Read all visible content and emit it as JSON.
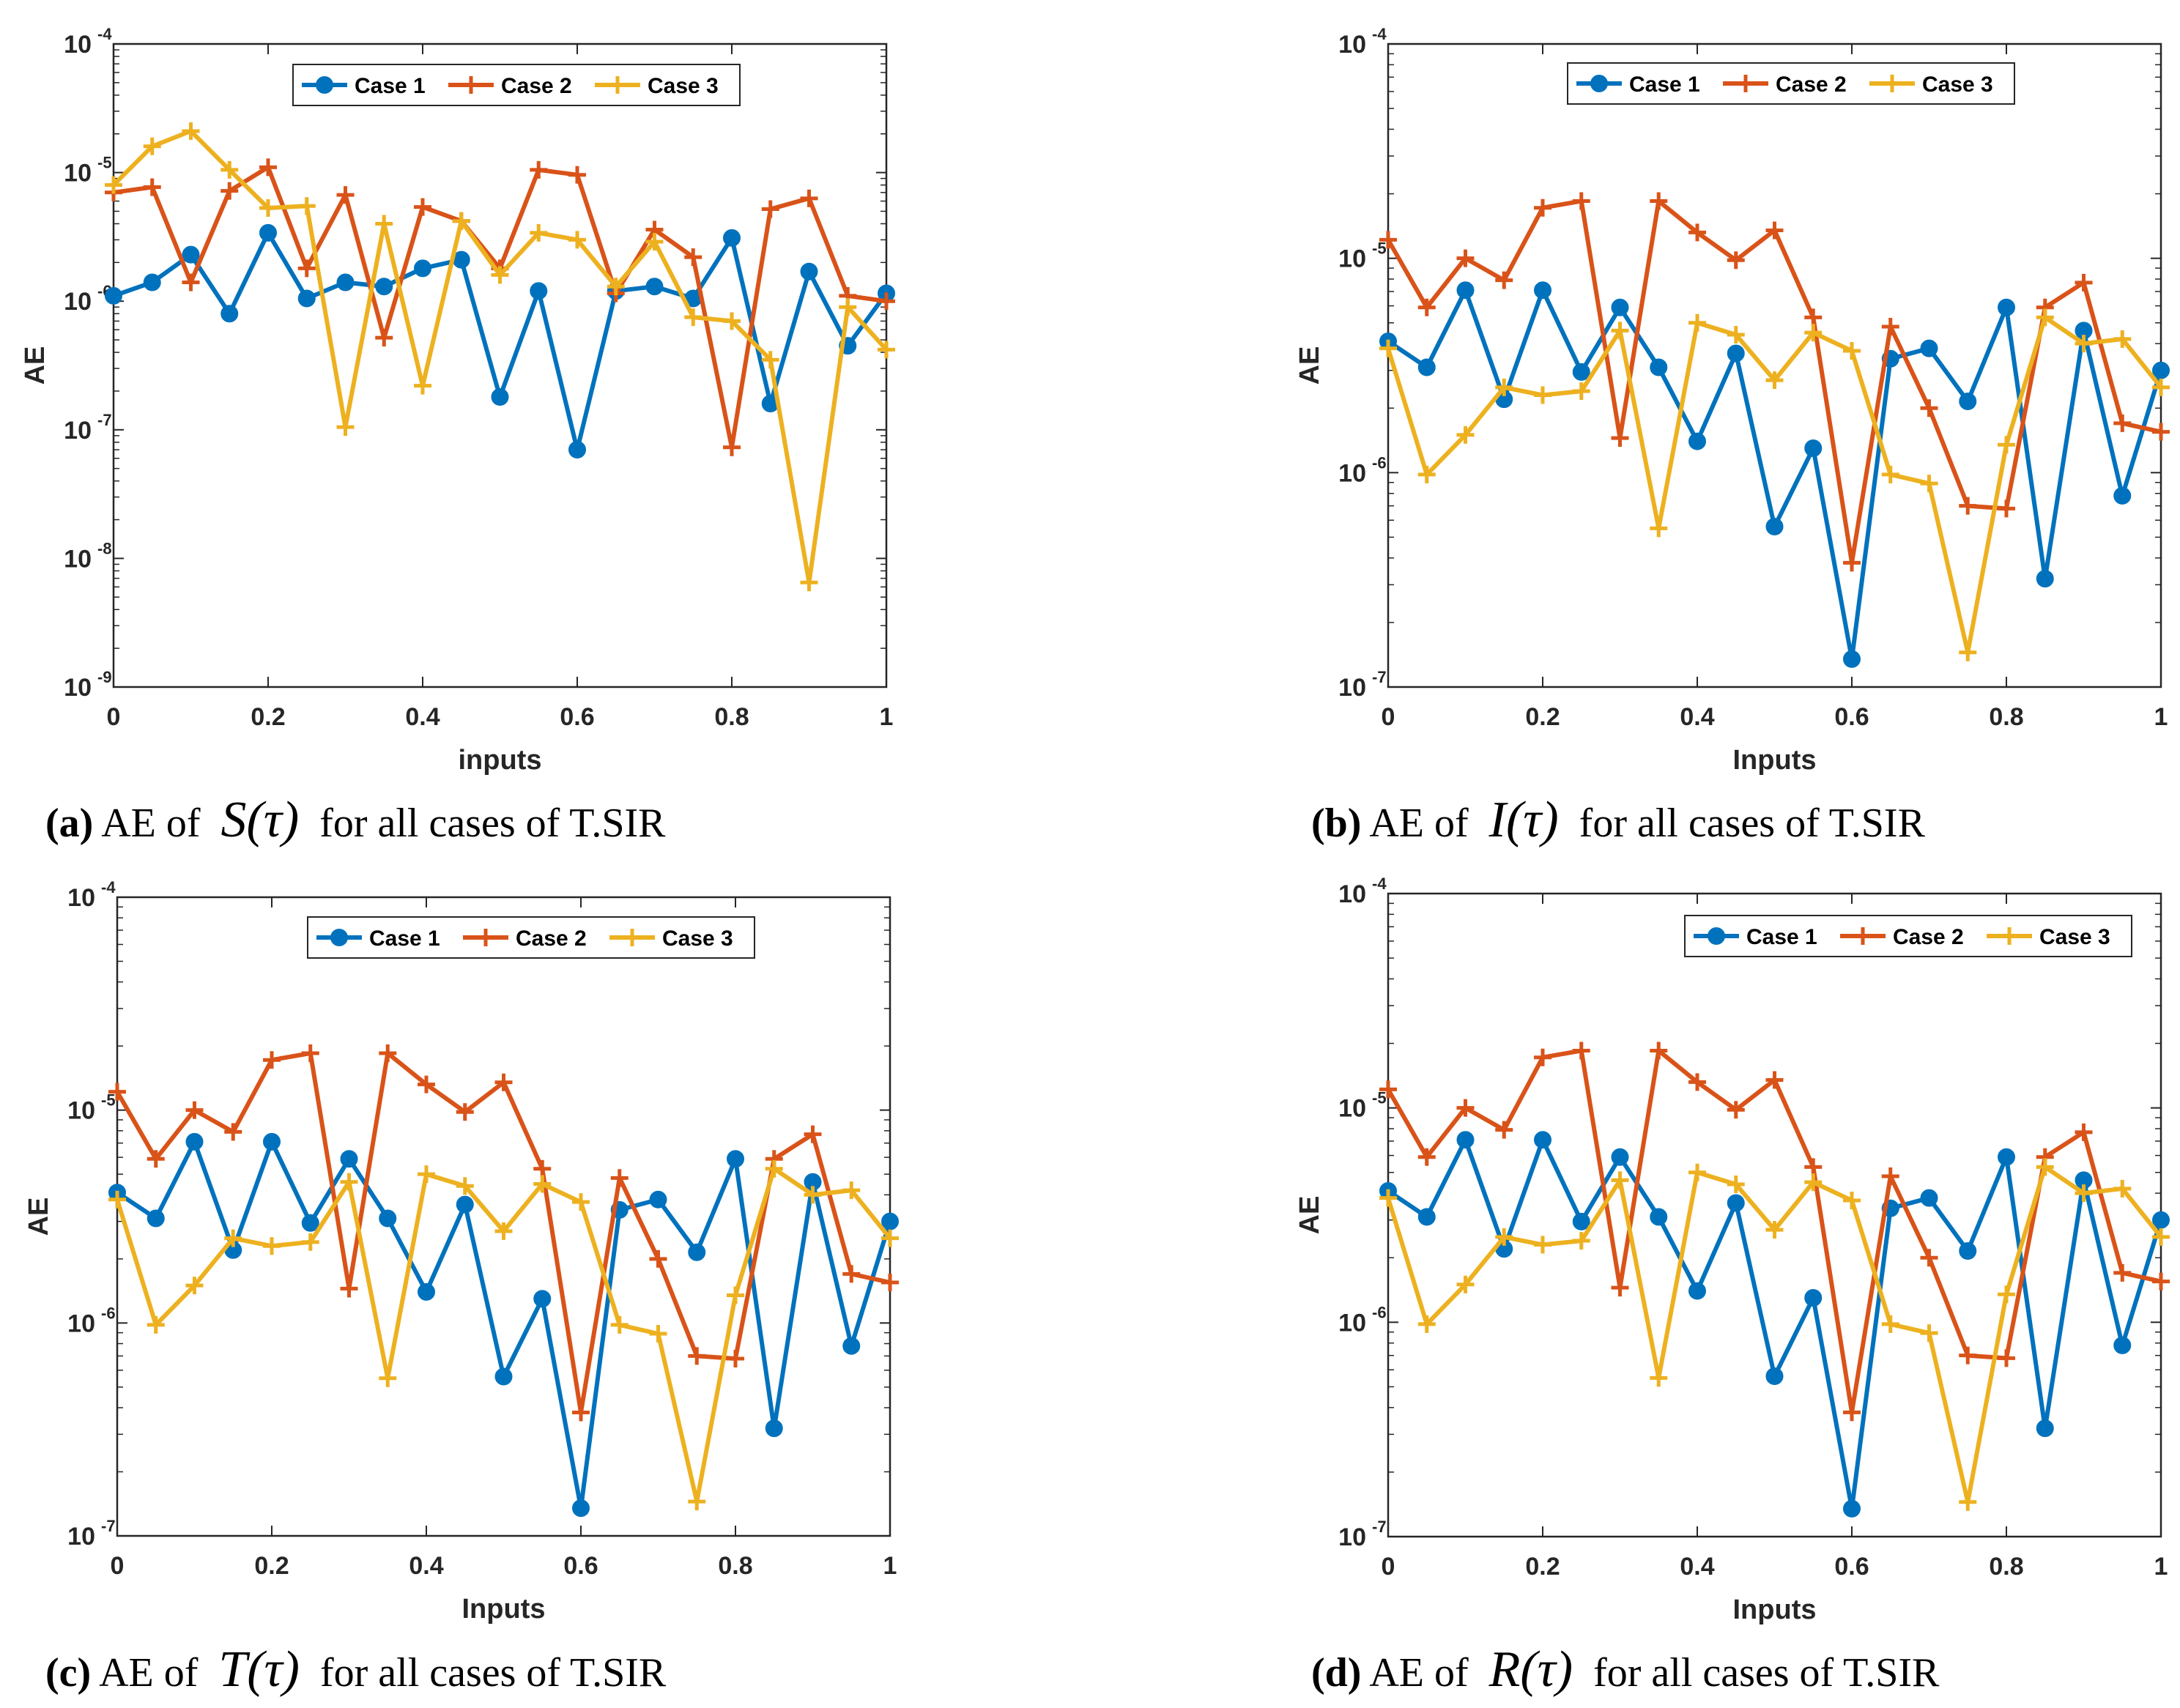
{
  "colors": {
    "case1": "#0072BD",
    "case2": "#D95319",
    "case3": "#EDB120",
    "axis": "#262626"
  },
  "chart_data": [
    {
      "id": "a",
      "type": "line",
      "yscale": "log",
      "title": "",
      "xlabel": "inputs",
      "ylabel": "AE",
      "xlim": [
        0,
        1
      ],
      "ylim_exp": [
        -9,
        -4
      ],
      "x_ticks": [
        "0",
        "0.2",
        "0.4",
        "0.6",
        "0.8",
        "1"
      ],
      "y_tick_base": "10",
      "y_tick_exps": [
        "-9",
        "-8",
        "-7",
        "-6",
        "-5",
        "-4"
      ],
      "legend_position": "top",
      "x": [
        0,
        0.05,
        0.1,
        0.15,
        0.2,
        0.25,
        0.3,
        0.35,
        0.4,
        0.45,
        0.5,
        0.55,
        0.6,
        0.65,
        0.7,
        0.75,
        0.8,
        0.85,
        0.9,
        0.95,
        1
      ],
      "series": [
        {
          "name": "Case 1",
          "values": [
            1.1e-06,
            1.4e-06,
            2.3e-06,
            8e-07,
            3.4e-06,
            1.05e-06,
            1.4e-06,
            1.3e-06,
            1.8e-06,
            2.1e-06,
            1.8e-07,
            1.2e-06,
            7e-08,
            1.2e-06,
            1.3e-06,
            1.05e-06,
            3.1e-06,
            1.6e-07,
            1.7e-06,
            4.5e-07,
            1.15e-06
          ]
        },
        {
          "name": "Case 2",
          "values": [
            7e-06,
            7.7e-06,
            1.4e-06,
            7.2e-06,
            1.1e-05,
            1.8e-06,
            6.7e-06,
            5.2e-07,
            5.4e-06,
            4.2e-06,
            1.8e-06,
            1.05e-05,
            9.6e-06,
            1.15e-06,
            3.6e-06,
            2.2e-06,
            7.3e-08,
            5.2e-06,
            6.3e-06,
            1.1e-06,
            1e-06
          ]
        },
        {
          "name": "Case 3",
          "values": [
            8e-06,
            1.6e-05,
            2.1e-05,
            1.05e-05,
            5.3e-06,
            5.5e-06,
            1.05e-07,
            4e-06,
            2.2e-07,
            4.2e-06,
            1.6e-06,
            3.4e-06,
            3e-06,
            1.3e-06,
            2.9e-06,
            7.5e-07,
            7e-07,
            3.5e-07,
            6.5e-09,
            9e-07,
            4.2e-07
          ]
        }
      ],
      "caption": {
        "label": "(a)",
        "prefix": " AE of",
        "func": "S(τ)",
        "suffix": "for all cases of T.SIR"
      }
    },
    {
      "id": "b",
      "type": "line",
      "yscale": "log",
      "title": "",
      "xlabel": "Inputs",
      "ylabel": "AE",
      "xlim": [
        0,
        1
      ],
      "ylim_exp": [
        -7,
        -4
      ],
      "x_ticks": [
        "0",
        "0.2",
        "0.4",
        "0.6",
        "0.8",
        "1"
      ],
      "y_tick_base": "10",
      "y_tick_exps": [
        "-7",
        "-6",
        "-5",
        "-4"
      ],
      "legend_position": "top",
      "x": [
        0,
        0.05,
        0.1,
        0.15,
        0.2,
        0.25,
        0.3,
        0.35,
        0.4,
        0.45,
        0.5,
        0.55,
        0.6,
        0.65,
        0.7,
        0.75,
        0.8,
        0.85,
        0.9,
        0.95,
        1
      ],
      "series": [
        {
          "name": "Case 1",
          "values": [
            4.1e-06,
            3.1e-06,
            7.1e-06,
            2.2e-06,
            7.1e-06,
            2.95e-06,
            5.9e-06,
            3.1e-06,
            1.4e-06,
            3.6e-06,
            5.6e-07,
            1.3e-06,
            1.35e-07,
            3.4e-06,
            3.8e-06,
            2.15e-06,
            5.9e-06,
            3.2e-07,
            4.6e-06,
            7.8e-07,
            3e-06
          ]
        },
        {
          "name": "Case 2",
          "values": [
            1.22e-05,
            5.9e-06,
            1e-05,
            7.9e-06,
            1.72e-05,
            1.85e-05,
            1.45e-06,
            1.85e-05,
            1.32e-05,
            9.8e-06,
            1.35e-05,
            5.3e-06,
            3.8e-07,
            4.8e-06,
            2e-06,
            7e-07,
            6.8e-07,
            5.9e-06,
            7.7e-06,
            1.7e-06,
            1.55e-06
          ]
        },
        {
          "name": "Case 3",
          "values": [
            3.8e-06,
            9.8e-07,
            1.5e-06,
            2.5e-06,
            2.3e-06,
            2.4e-06,
            4.6e-06,
            5.5e-07,
            5e-06,
            4.4e-06,
            2.7e-06,
            4.5e-06,
            3.7e-06,
            9.8e-07,
            8.9e-07,
            1.45e-07,
            1.35e-06,
            5.3e-06,
            4e-06,
            4.2e-06,
            2.5e-06
          ]
        }
      ],
      "caption": {
        "label": "(b)",
        "prefix": " AE of",
        "func": "I(τ)",
        "suffix": "for all cases of T.SIR"
      }
    },
    {
      "id": "c",
      "type": "line",
      "yscale": "log",
      "title": "",
      "xlabel": "Inputs",
      "ylabel": "AE",
      "xlim": [
        0,
        1
      ],
      "ylim_exp": [
        -7,
        -4
      ],
      "x_ticks": [
        "0",
        "0.2",
        "0.4",
        "0.6",
        "0.8",
        "1"
      ],
      "y_tick_base": "10",
      "y_tick_exps": [
        "-7",
        "-6",
        "-5",
        "-4"
      ],
      "legend_position": "top",
      "x": [
        0,
        0.05,
        0.1,
        0.15,
        0.2,
        0.25,
        0.3,
        0.35,
        0.4,
        0.45,
        0.5,
        0.55,
        0.6,
        0.65,
        0.7,
        0.75,
        0.8,
        0.85,
        0.9,
        0.95,
        1
      ],
      "series": [
        {
          "name": "Case 1",
          "values": [
            4.1e-06,
            3.1e-06,
            7.1e-06,
            2.2e-06,
            7.1e-06,
            2.95e-06,
            5.9e-06,
            3.1e-06,
            1.4e-06,
            3.6e-06,
            5.6e-07,
            1.3e-06,
            1.35e-07,
            3.4e-06,
            3.8e-06,
            2.15e-06,
            5.9e-06,
            3.2e-07,
            4.6e-06,
            7.8e-07,
            3e-06
          ]
        },
        {
          "name": "Case 2",
          "values": [
            1.22e-05,
            5.9e-06,
            1e-05,
            7.9e-06,
            1.72e-05,
            1.85e-05,
            1.45e-06,
            1.85e-05,
            1.32e-05,
            9.8e-06,
            1.35e-05,
            5.3e-06,
            3.8e-07,
            4.8e-06,
            2e-06,
            7e-07,
            6.8e-07,
            5.9e-06,
            7.7e-06,
            1.7e-06,
            1.55e-06
          ]
        },
        {
          "name": "Case 3",
          "values": [
            3.8e-06,
            9.8e-07,
            1.5e-06,
            2.5e-06,
            2.3e-06,
            2.4e-06,
            4.6e-06,
            5.5e-07,
            5e-06,
            4.4e-06,
            2.7e-06,
            4.5e-06,
            3.7e-06,
            9.8e-07,
            8.9e-07,
            1.45e-07,
            1.35e-06,
            5.3e-06,
            4e-06,
            4.2e-06,
            2.5e-06
          ]
        }
      ],
      "caption": {
        "label": "(c)",
        "prefix": " AE of",
        "func": "T(τ)",
        "suffix": "for all cases of T.SIR"
      }
    },
    {
      "id": "d",
      "type": "line",
      "yscale": "log",
      "title": "",
      "xlabel": "Inputs",
      "ylabel": "AE",
      "xlim": [
        0,
        1
      ],
      "ylim_exp": [
        -7,
        -4
      ],
      "x_ticks": [
        "0",
        "0.2",
        "0.4",
        "0.6",
        "0.8",
        "1"
      ],
      "y_tick_base": "10",
      "y_tick_exps": [
        "-7",
        "-6",
        "-5",
        "-4"
      ],
      "legend_position": "top-right",
      "x": [
        0,
        0.05,
        0.1,
        0.15,
        0.2,
        0.25,
        0.3,
        0.35,
        0.4,
        0.45,
        0.5,
        0.55,
        0.6,
        0.65,
        0.7,
        0.75,
        0.8,
        0.85,
        0.9,
        0.95,
        1
      ],
      "series": [
        {
          "name": "Case 1",
          "values": [
            4.1e-06,
            3.1e-06,
            7.1e-06,
            2.2e-06,
            7.1e-06,
            2.95e-06,
            5.9e-06,
            3.1e-06,
            1.4e-06,
            3.6e-06,
            5.6e-07,
            1.3e-06,
            1.35e-07,
            3.4e-06,
            3.8e-06,
            2.15e-06,
            5.9e-06,
            3.2e-07,
            4.6e-06,
            7.8e-07,
            3e-06
          ]
        },
        {
          "name": "Case 2",
          "values": [
            1.22e-05,
            5.9e-06,
            1e-05,
            7.9e-06,
            1.72e-05,
            1.85e-05,
            1.45e-06,
            1.85e-05,
            1.32e-05,
            9.8e-06,
            1.35e-05,
            5.3e-06,
            3.8e-07,
            4.8e-06,
            2e-06,
            7e-07,
            6.8e-07,
            5.9e-06,
            7.7e-06,
            1.7e-06,
            1.55e-06
          ]
        },
        {
          "name": "Case 3",
          "values": [
            3.8e-06,
            9.8e-07,
            1.5e-06,
            2.5e-06,
            2.3e-06,
            2.4e-06,
            4.6e-06,
            5.5e-07,
            5e-06,
            4.4e-06,
            2.7e-06,
            4.5e-06,
            3.7e-06,
            9.8e-07,
            8.9e-07,
            1.45e-07,
            1.35e-06,
            5.3e-06,
            4e-06,
            4.2e-06,
            2.5e-06
          ]
        }
      ],
      "caption": {
        "label": "(d)",
        "prefix": " AE of",
        "func": "R(τ)",
        "suffix": "for all cases of T.SIR"
      }
    }
  ]
}
